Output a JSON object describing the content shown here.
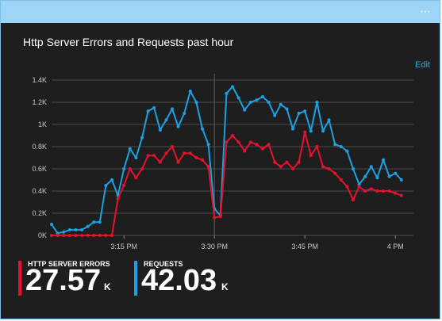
{
  "tile": {
    "title": "Http Server Errors and Requests past hour",
    "edit_label": "Edit",
    "more_icon": "ellipsis-icon"
  },
  "colors": {
    "errors": "#e8112d",
    "requests": "#1ba1e2",
    "background": "#1e1e1e",
    "titlebar": "#9ed4f5",
    "gridline": "#4a4a4a",
    "axis_text": "#c8c8c8"
  },
  "legend": {
    "errors_label": "HTTP SERVER ERRORS",
    "errors_value": "27.57",
    "errors_unit": "K",
    "requests_label": "REQUESTS",
    "requests_value": "42.03",
    "requests_unit": "K"
  },
  "chart_data": {
    "type": "line",
    "x_ticks": [
      "3:15 PM",
      "3:30 PM",
      "3:45 PM",
      "4 PM"
    ],
    "y_ticks": [
      "0K",
      "0.2K",
      "0.4K",
      "0.6K",
      "0.8K",
      "1K",
      "1.2K",
      "1.4K"
    ],
    "ylim": [
      0,
      1.4
    ],
    "xlim": [
      3,
      63
    ],
    "grid": true,
    "x": [
      3,
      4,
      5,
      6,
      7,
      8,
      9,
      10,
      11,
      12,
      13,
      14,
      15,
      16,
      17,
      18,
      19,
      20,
      21,
      22,
      23,
      24,
      25,
      26,
      27,
      28,
      29,
      30,
      31,
      32,
      33,
      34,
      35,
      36,
      37,
      38,
      39,
      40,
      41,
      42,
      43,
      44,
      45,
      46,
      47,
      48,
      49,
      50,
      51,
      52,
      53,
      54,
      55,
      56,
      57,
      58,
      59,
      60,
      61
    ],
    "series": [
      {
        "name": "Requests",
        "values": [
          0.1,
          0.02,
          0.03,
          0.05,
          0.05,
          0.05,
          0.08,
          0.12,
          0.12,
          0.45,
          0.5,
          0.36,
          0.6,
          0.78,
          0.7,
          0.88,
          1.12,
          1.15,
          0.95,
          1.04,
          1.14,
          0.98,
          1.1,
          1.3,
          1.2,
          0.96,
          0.82,
          0.24,
          0.18,
          1.28,
          1.34,
          1.24,
          1.13,
          1.2,
          1.22,
          1.25,
          1.2,
          1.08,
          1.18,
          1.14,
          0.96,
          1.1,
          1.12,
          0.94,
          1.2,
          0.94,
          1.04,
          0.82,
          0.8,
          0.76,
          0.6,
          0.46,
          0.53,
          0.62,
          0.52,
          0.68,
          0.53,
          0.56,
          0.5
        ]
      },
      {
        "name": "Server Errors",
        "values": [
          0,
          0,
          0,
          0,
          0,
          0,
          0,
          0,
          0,
          0,
          0,
          0.33,
          0.45,
          0.6,
          0.52,
          0.6,
          0.72,
          0.72,
          0.66,
          0.74,
          0.8,
          0.66,
          0.74,
          0.74,
          0.7,
          0.68,
          0.62,
          0.16,
          0.17,
          0.84,
          0.9,
          0.84,
          0.76,
          0.84,
          0.82,
          0.78,
          0.82,
          0.66,
          0.62,
          0.66,
          0.6,
          0.66,
          0.93,
          0.72,
          0.8,
          0.62,
          0.6,
          0.56,
          0.5,
          0.44,
          0.32,
          0.44,
          0.4,
          0.42,
          0.4,
          0.4,
          0.4,
          0.38,
          0.36
        ]
      }
    ]
  }
}
